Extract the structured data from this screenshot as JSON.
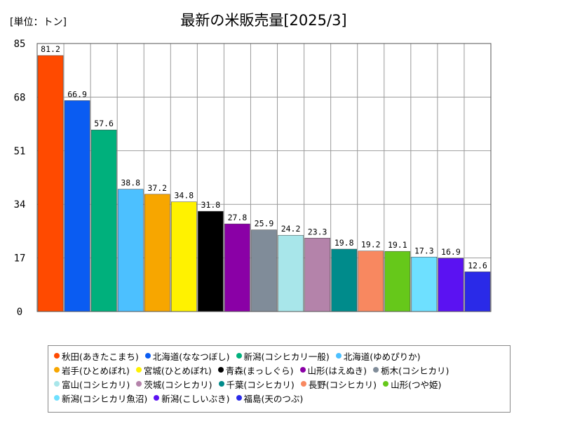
{
  "chart_data": {
    "type": "bar",
    "title": "最新の米販売量[2025/3]",
    "unit_label": "[単位：トン]",
    "xlabel": "",
    "ylabel": "",
    "ylim": [
      0,
      85
    ],
    "yticks": [
      0,
      17,
      34,
      51,
      68,
      85
    ],
    "grid": true,
    "legend_position": "bottom",
    "categories": [
      "秋田(あきたこまち)",
      "北海道(ななつぼし)",
      "新潟(コシヒカリ一般)",
      "北海道(ゆめぴりか)",
      "岩手(ひとめぼれ)",
      "宮城(ひとめぼれ)",
      "青森(まっしぐら)",
      "山形(はえぬき)",
      "栃木(コシヒカリ)",
      "富山(コシヒカリ)",
      "茨城(コシヒカリ)",
      "千葉(コシヒカリ)",
      "長野(コシヒカリ)",
      "山形(つや姫)",
      "新潟(コシヒカリ魚沼)",
      "新潟(こしいぶき)",
      "福島(天のつぶ)"
    ],
    "values": [
      81.2,
      66.9,
      57.6,
      38.8,
      37.2,
      34.8,
      31.8,
      27.8,
      25.9,
      24.2,
      23.3,
      19.8,
      19.2,
      19.1,
      17.3,
      16.9,
      12.6
    ],
    "colors": [
      "#ff4a00",
      "#0a5cf2",
      "#00b07c",
      "#4cc0ff",
      "#f7a600",
      "#fff200",
      "#000000",
      "#8a00a6",
      "#808c99",
      "#a8e6ea",
      "#b483aa",
      "#008b8b",
      "#f88860",
      "#66c81a",
      "#6ee0ff",
      "#5b12f2",
      "#2a2ae8"
    ],
    "legend_rows": [
      [
        0,
        1,
        2,
        3
      ],
      [
        4,
        5,
        6,
        7,
        8
      ],
      [
        9,
        10,
        11,
        12,
        13
      ],
      [
        14,
        15,
        16
      ]
    ]
  }
}
